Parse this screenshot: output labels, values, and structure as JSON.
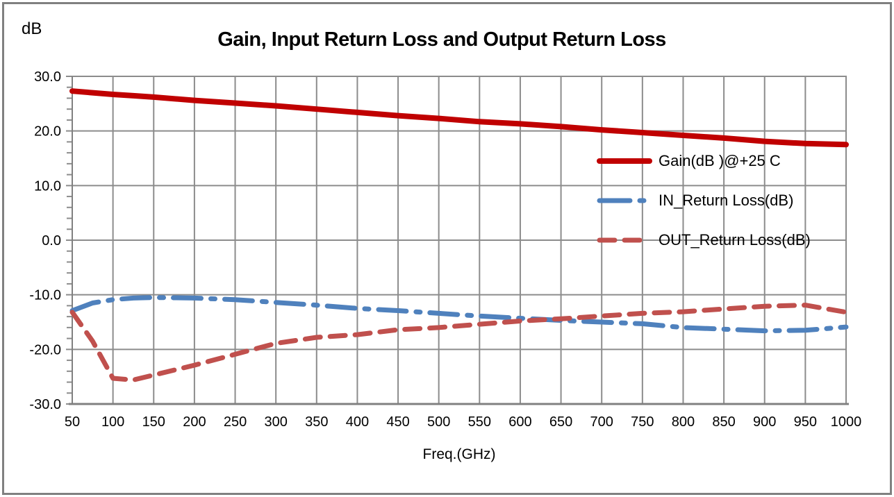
{
  "chart_data": {
    "type": "line",
    "title": "Gain, Input Return Loss and Output Return Loss",
    "y_unit_label": "dB",
    "xlabel": "Freq.(GHz)",
    "ylabel": "dB",
    "xlim": [
      50,
      1000
    ],
    "ylim": [
      -30,
      30
    ],
    "grid": true,
    "legend_position": "inside-right",
    "xticks": [
      50,
      100,
      150,
      200,
      250,
      300,
      350,
      400,
      450,
      500,
      550,
      600,
      650,
      700,
      750,
      800,
      850,
      900,
      950,
      1000
    ],
    "yticks": [
      30,
      20,
      10,
      0,
      -10,
      -20,
      -30
    ],
    "ytick_labels": [
      "30.0",
      "20.0",
      "10.0",
      "0.0",
      "-10.0",
      "-20.0",
      "-30.0"
    ],
    "y_minor_tick_step": 2,
    "x": [
      50,
      75,
      100,
      125,
      150,
      200,
      250,
      300,
      350,
      400,
      450,
      500,
      550,
      600,
      650,
      700,
      750,
      800,
      850,
      900,
      950,
      1000
    ],
    "series": [
      {
        "name": "Gain(dB )@+25 C",
        "color": "#C00000",
        "style": "solid",
        "width": 8,
        "values": [
          27.3,
          27.0,
          26.7,
          26.45,
          26.2,
          25.6,
          25.1,
          24.6,
          24.0,
          23.4,
          22.8,
          22.3,
          21.7,
          21.3,
          20.8,
          20.2,
          19.7,
          19.2,
          18.7,
          18.1,
          17.7,
          17.5
        ]
      },
      {
        "name": "IN_Return Loss(dB)",
        "color": "#4F81BD",
        "style": "dash-dot",
        "width": 7,
        "values": [
          -12.9,
          -11.5,
          -10.9,
          -10.6,
          -10.5,
          -10.6,
          -10.9,
          -11.4,
          -11.9,
          -12.5,
          -12.9,
          -13.4,
          -13.9,
          -14.3,
          -14.7,
          -15.0,
          -15.3,
          -16.0,
          -16.3,
          -16.6,
          -16.5,
          -15.9
        ]
      },
      {
        "name": "OUT_Return Loss(dB)",
        "color": "#C0504D",
        "style": "dash",
        "width": 7,
        "values": [
          -13.2,
          -18.5,
          -25.3,
          -25.6,
          -24.7,
          -22.9,
          -20.9,
          -18.9,
          -17.8,
          -17.3,
          -16.4,
          -16.0,
          -15.4,
          -14.8,
          -14.4,
          -13.9,
          -13.4,
          -13.1,
          -12.6,
          -12.1,
          -11.9,
          -13.2
        ]
      }
    ],
    "colors": {
      "gridline": "#8C8C8C",
      "axis": "#808080",
      "frame_border": "#808080",
      "background": "#FFFFFF",
      "text": "#000000"
    }
  }
}
